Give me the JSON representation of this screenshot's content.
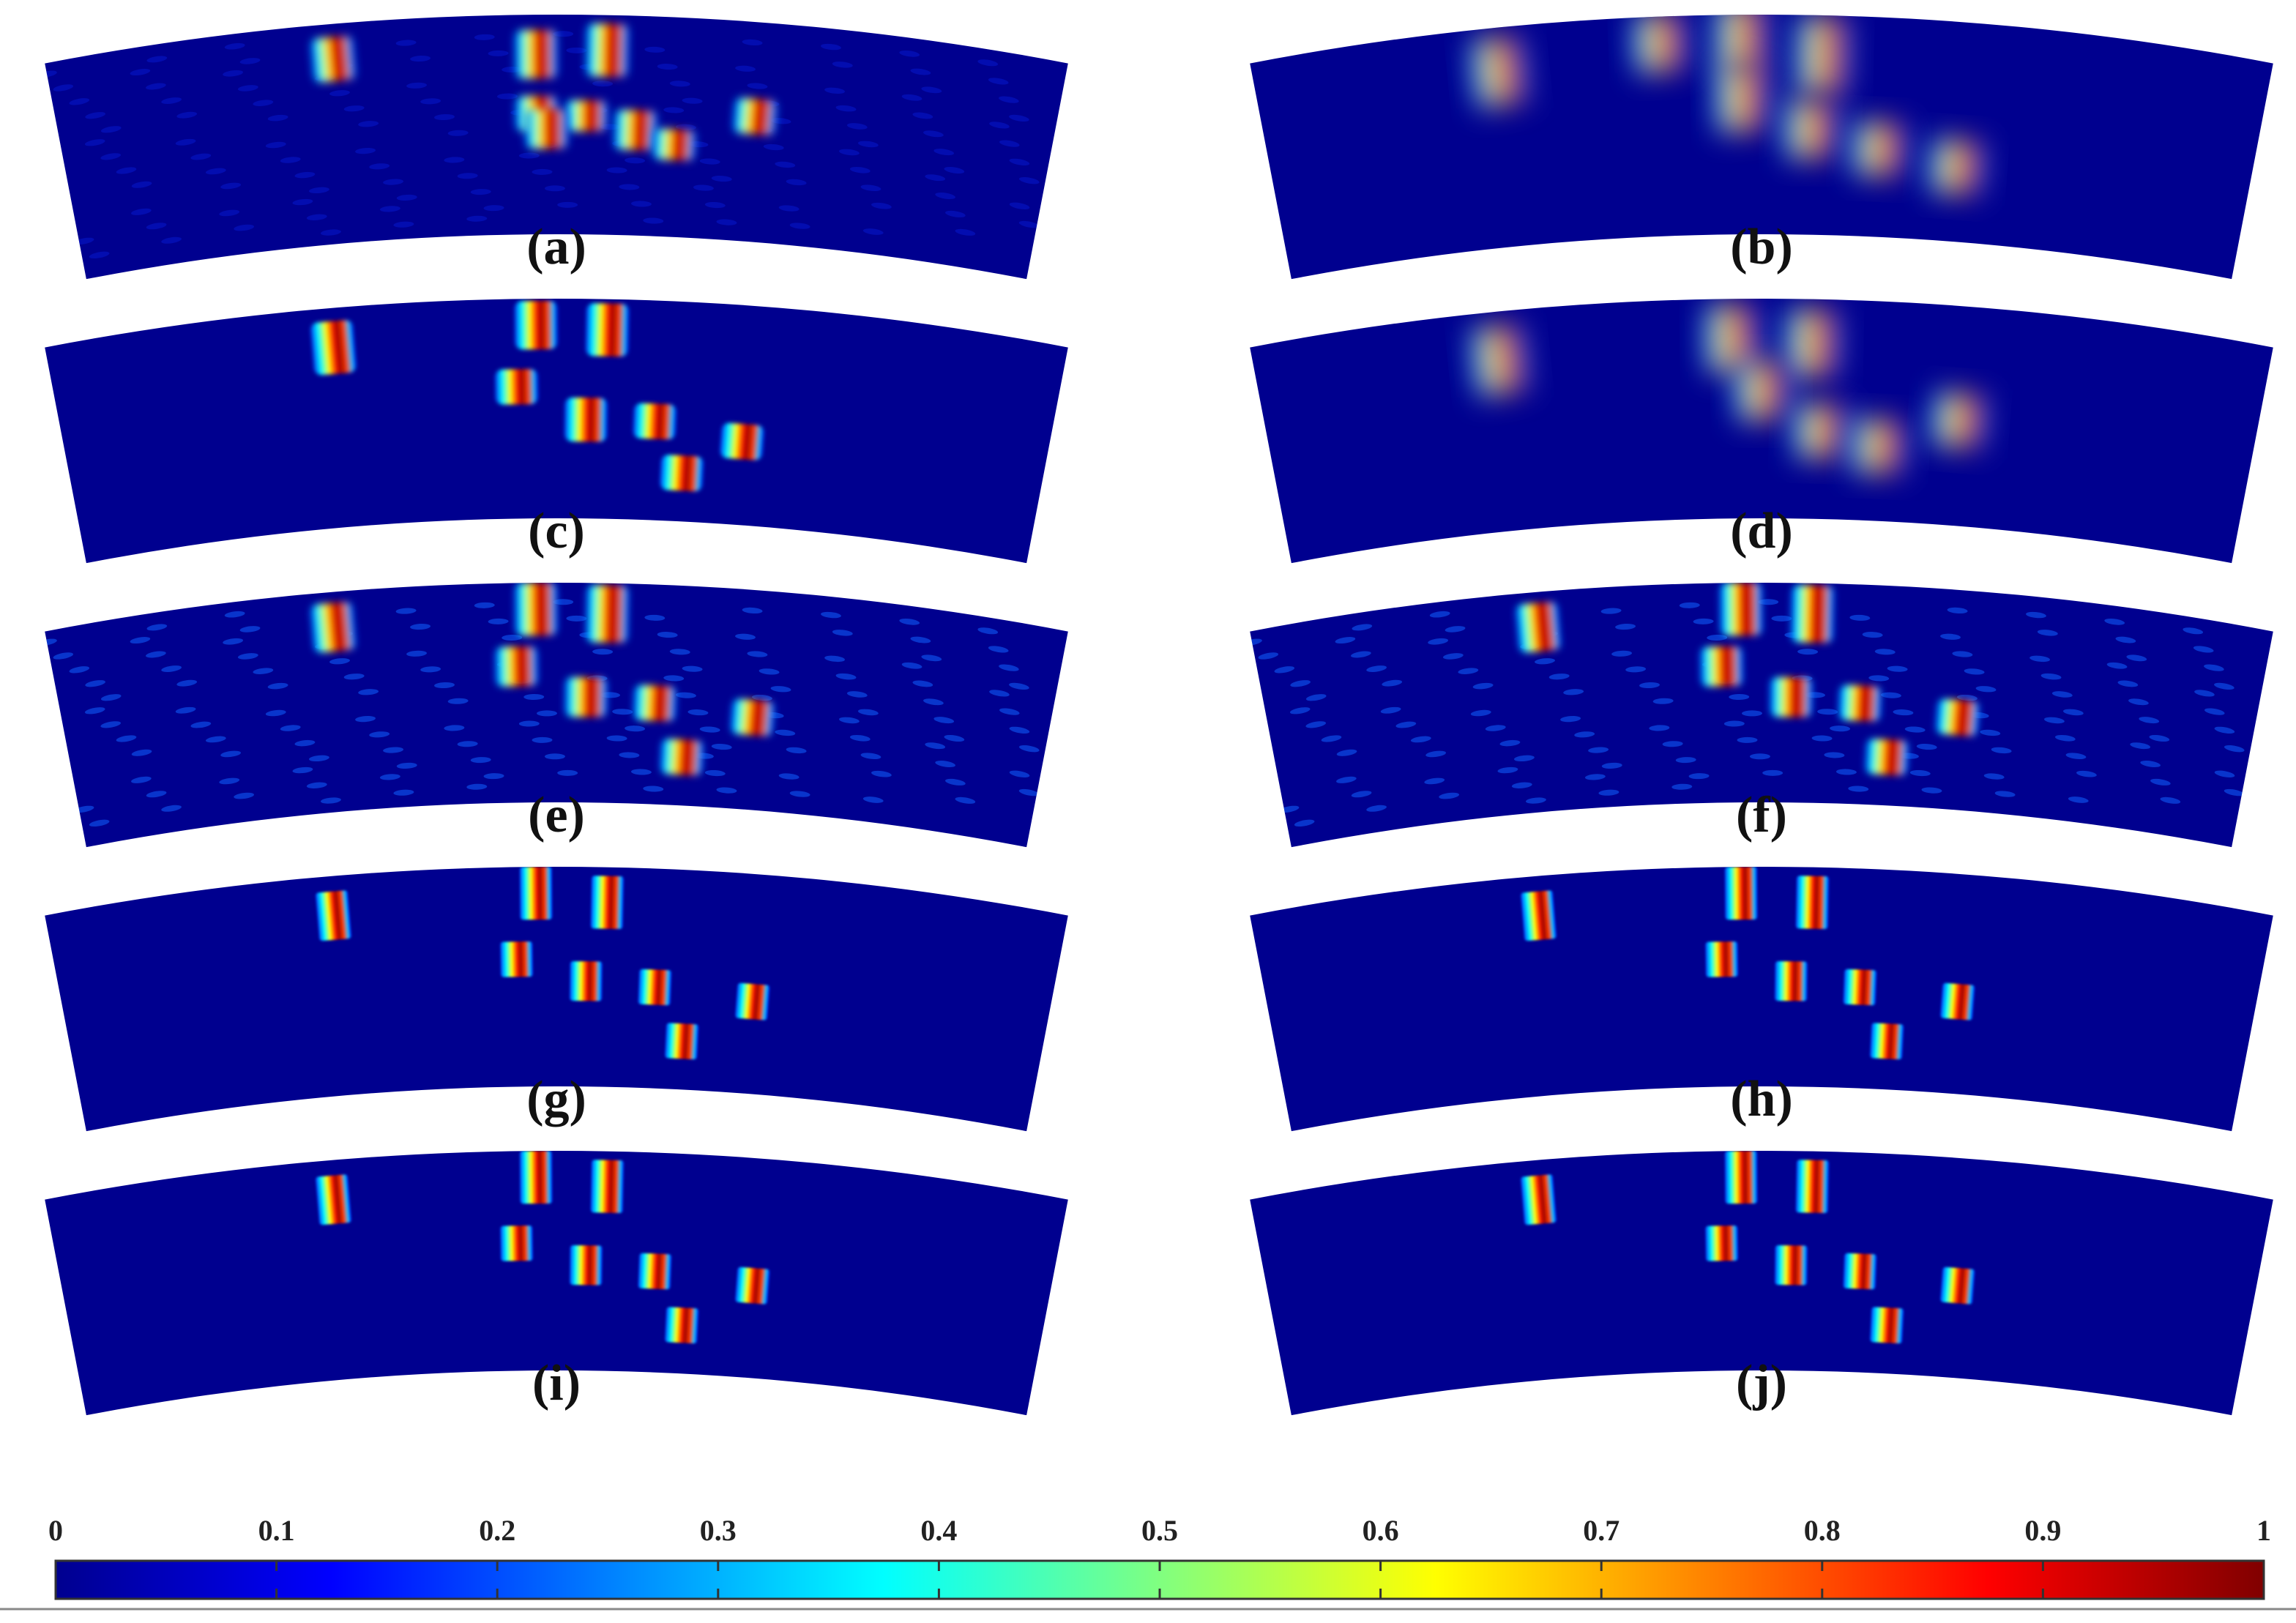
{
  "figure": {
    "colormap_name": "jet",
    "background_color": "#00008f",
    "panels": [
      {
        "label": "(a)",
        "style": "noisy",
        "blobs": [
          [
            0.28,
            0.16,
            0.2
          ],
          [
            0.48,
            0.18,
            0.22
          ],
          [
            0.55,
            0.16,
            0.24
          ],
          [
            0.48,
            0.45,
            0.16
          ],
          [
            0.53,
            0.46,
            0.14
          ],
          [
            0.58,
            0.52,
            0.18
          ],
          [
            0.62,
            0.58,
            0.14
          ],
          [
            0.7,
            0.43,
            0.16
          ],
          [
            0.49,
            0.52,
            0.18
          ]
        ]
      },
      {
        "label": "(b)",
        "style": "smooth",
        "blobs": [
          [
            0.24,
            0.2,
            0.3
          ],
          [
            0.4,
            0.12,
            0.26
          ],
          [
            0.48,
            0.1,
            0.3
          ],
          [
            0.56,
            0.18,
            0.34
          ],
          [
            0.48,
            0.38,
            0.3
          ],
          [
            0.55,
            0.52,
            0.26
          ],
          [
            0.62,
            0.6,
            0.24
          ],
          [
            0.7,
            0.66,
            0.24
          ]
        ]
      },
      {
        "label": "(c)",
        "style": "sparse",
        "blobs": [
          [
            0.28,
            0.18,
            0.24
          ],
          [
            0.48,
            0.12,
            0.22
          ],
          [
            0.55,
            0.14,
            0.24
          ],
          [
            0.46,
            0.4,
            0.16
          ],
          [
            0.53,
            0.55,
            0.2
          ],
          [
            0.6,
            0.55,
            0.16
          ],
          [
            0.63,
            0.78,
            0.16
          ],
          [
            0.69,
            0.62,
            0.16
          ]
        ]
      },
      {
        "label": "(d)",
        "style": "smooth",
        "blobs": [
          [
            0.24,
            0.22,
            0.3
          ],
          [
            0.47,
            0.18,
            0.3
          ],
          [
            0.55,
            0.2,
            0.3
          ],
          [
            0.5,
            0.42,
            0.26
          ],
          [
            0.56,
            0.6,
            0.24
          ],
          [
            0.62,
            0.66,
            0.24
          ],
          [
            0.7,
            0.52,
            0.24
          ]
        ]
      },
      {
        "label": "(e)",
        "style": "speckled",
        "blobs": [
          [
            0.28,
            0.16,
            0.22
          ],
          [
            0.48,
            0.12,
            0.24
          ],
          [
            0.55,
            0.14,
            0.26
          ],
          [
            0.46,
            0.38,
            0.18
          ],
          [
            0.53,
            0.52,
            0.18
          ],
          [
            0.6,
            0.54,
            0.16
          ],
          [
            0.63,
            0.78,
            0.16
          ],
          [
            0.7,
            0.58,
            0.16
          ]
        ]
      },
      {
        "label": "(f)",
        "style": "speckled",
        "blobs": [
          [
            0.28,
            0.16,
            0.22
          ],
          [
            0.48,
            0.12,
            0.24
          ],
          [
            0.55,
            0.14,
            0.26
          ],
          [
            0.46,
            0.38,
            0.18
          ],
          [
            0.53,
            0.52,
            0.18
          ],
          [
            0.6,
            0.54,
            0.16
          ],
          [
            0.63,
            0.78,
            0.16
          ],
          [
            0.7,
            0.58,
            0.16
          ]
        ]
      },
      {
        "label": "(g)",
        "style": "sharp",
        "blobs": [
          [
            0.28,
            0.18,
            0.22
          ],
          [
            0.48,
            0.12,
            0.24
          ],
          [
            0.55,
            0.16,
            0.24
          ],
          [
            0.46,
            0.42,
            0.16
          ],
          [
            0.53,
            0.52,
            0.18
          ],
          [
            0.6,
            0.54,
            0.16
          ],
          [
            0.63,
            0.78,
            0.16
          ],
          [
            0.7,
            0.58,
            0.16
          ]
        ]
      },
      {
        "label": "(h)",
        "style": "sharp",
        "blobs": [
          [
            0.28,
            0.18,
            0.22
          ],
          [
            0.48,
            0.12,
            0.24
          ],
          [
            0.55,
            0.16,
            0.24
          ],
          [
            0.46,
            0.42,
            0.16
          ],
          [
            0.53,
            0.52,
            0.18
          ],
          [
            0.6,
            0.54,
            0.16
          ],
          [
            0.63,
            0.78,
            0.16
          ],
          [
            0.7,
            0.58,
            0.16
          ]
        ]
      },
      {
        "label": "(i)",
        "style": "sharp",
        "blobs": [
          [
            0.28,
            0.18,
            0.22
          ],
          [
            0.48,
            0.12,
            0.24
          ],
          [
            0.55,
            0.16,
            0.24
          ],
          [
            0.46,
            0.42,
            0.16
          ],
          [
            0.53,
            0.52,
            0.18
          ],
          [
            0.6,
            0.54,
            0.16
          ],
          [
            0.63,
            0.78,
            0.16
          ],
          [
            0.7,
            0.58,
            0.16
          ]
        ]
      },
      {
        "label": "(j)",
        "style": "sharp",
        "blobs": [
          [
            0.28,
            0.18,
            0.22
          ],
          [
            0.48,
            0.12,
            0.24
          ],
          [
            0.55,
            0.16,
            0.24
          ],
          [
            0.46,
            0.42,
            0.16
          ],
          [
            0.53,
            0.52,
            0.18
          ],
          [
            0.6,
            0.54,
            0.16
          ],
          [
            0.63,
            0.78,
            0.16
          ],
          [
            0.7,
            0.58,
            0.16
          ]
        ]
      }
    ],
    "colorbar": {
      "min": 0,
      "max": 1,
      "ticks": [
        "0",
        "0.1",
        "0.2",
        "0.3",
        "0.4",
        "0.5",
        "0.6",
        "0.7",
        "0.8",
        "0.9",
        "1"
      ],
      "stops": [
        "#00008f",
        "#0000ff",
        "#0080ff",
        "#00ffff",
        "#80ff80",
        "#ffff00",
        "#ff8000",
        "#ff0000",
        "#800000"
      ]
    }
  }
}
